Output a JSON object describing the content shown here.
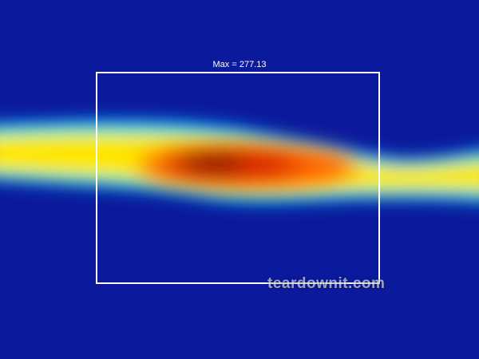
{
  "overlay": {
    "max_label": "Max = 277.13"
  },
  "watermark": "teardownit.com",
  "colors": {
    "background": "#0b1a9c",
    "roi_border": "#ffffff"
  }
}
